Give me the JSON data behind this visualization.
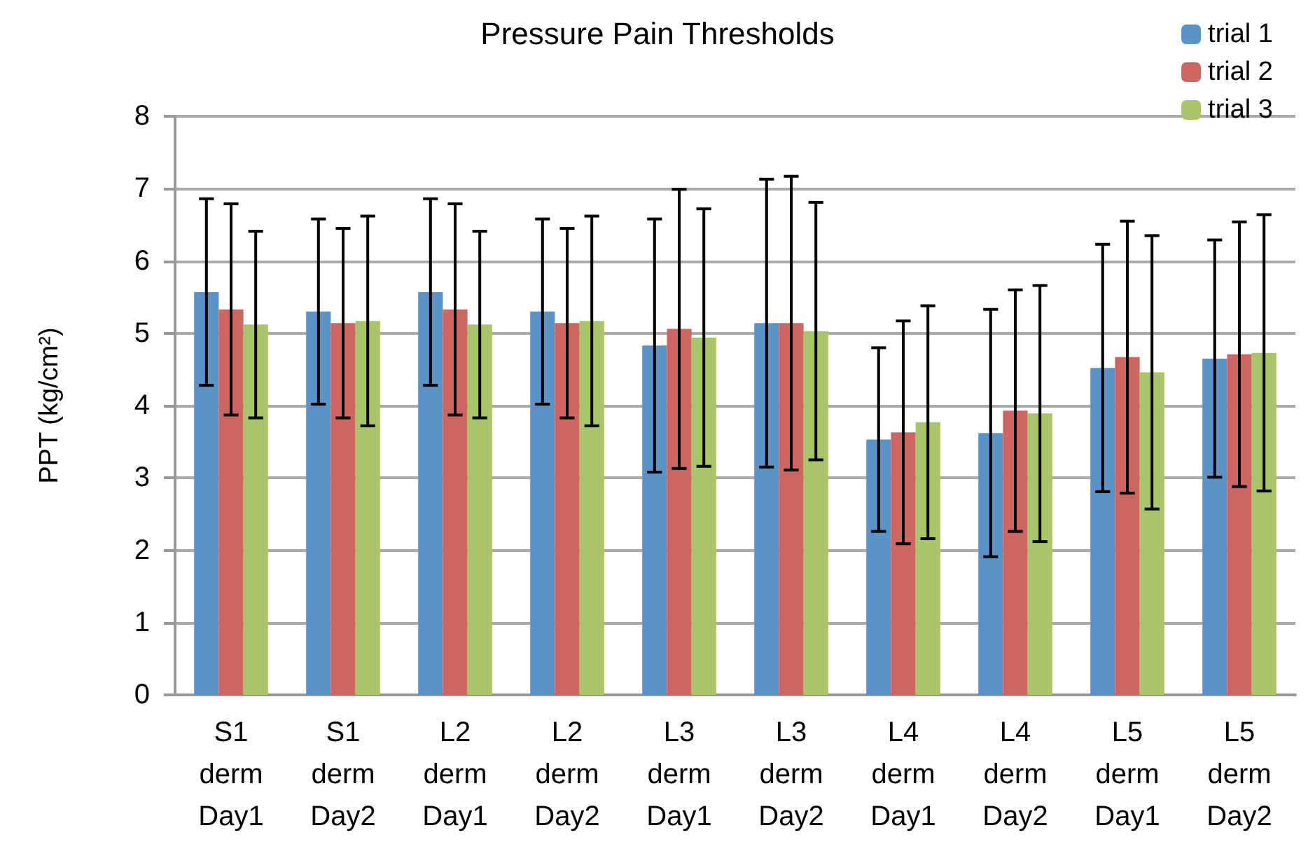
{
  "chart_data": {
    "type": "bar",
    "title": "Pressure Pain Thresholds",
    "ylabel": "PPT (kg/cm²)",
    "categories": [
      "S1\nderm\nDay1",
      "S1\nderm\nDay2",
      "L2\nderm\nDay1",
      "L2\nderm\nDay2",
      "L3\nderm\nDay1",
      "L3\nderm\nDay2",
      "L4\nderm\nDay1",
      "L4\nderm\nDay2",
      "L5\nderm\nDay1",
      "L5\nderm\nDay2"
    ],
    "series": [
      {
        "name": "trial 1",
        "color": "#5b92c8",
        "values": [
          5.57,
          5.3,
          5.57,
          5.3,
          4.83,
          5.14,
          3.53,
          3.62,
          4.52,
          4.65
        ],
        "errors": [
          1.29,
          1.28,
          1.29,
          1.28,
          1.75,
          1.99,
          1.27,
          1.71,
          1.71,
          1.64
        ]
      },
      {
        "name": "trial 2",
        "color": "#cd6560",
        "values": [
          5.33,
          5.14,
          5.33,
          5.14,
          5.06,
          5.14,
          3.63,
          3.93,
          4.67,
          4.71
        ],
        "errors": [
          1.46,
          1.31,
          1.46,
          1.31,
          1.93,
          2.03,
          1.54,
          1.67,
          1.88,
          1.83
        ]
      },
      {
        "name": "trial 3",
        "color": "#a9c46a",
        "values": [
          5.12,
          5.17,
          5.12,
          5.17,
          4.94,
          5.03,
          3.77,
          3.89,
          4.46,
          4.73
        ],
        "errors": [
          1.29,
          1.45,
          1.29,
          1.45,
          1.78,
          1.78,
          1.61,
          1.77,
          1.89,
          1.91
        ]
      }
    ],
    "ylim": [
      0,
      8
    ],
    "yticks": [
      0,
      1,
      2,
      3,
      4,
      5,
      6,
      7,
      8
    ],
    "grid": "y",
    "legend": "top right"
  }
}
